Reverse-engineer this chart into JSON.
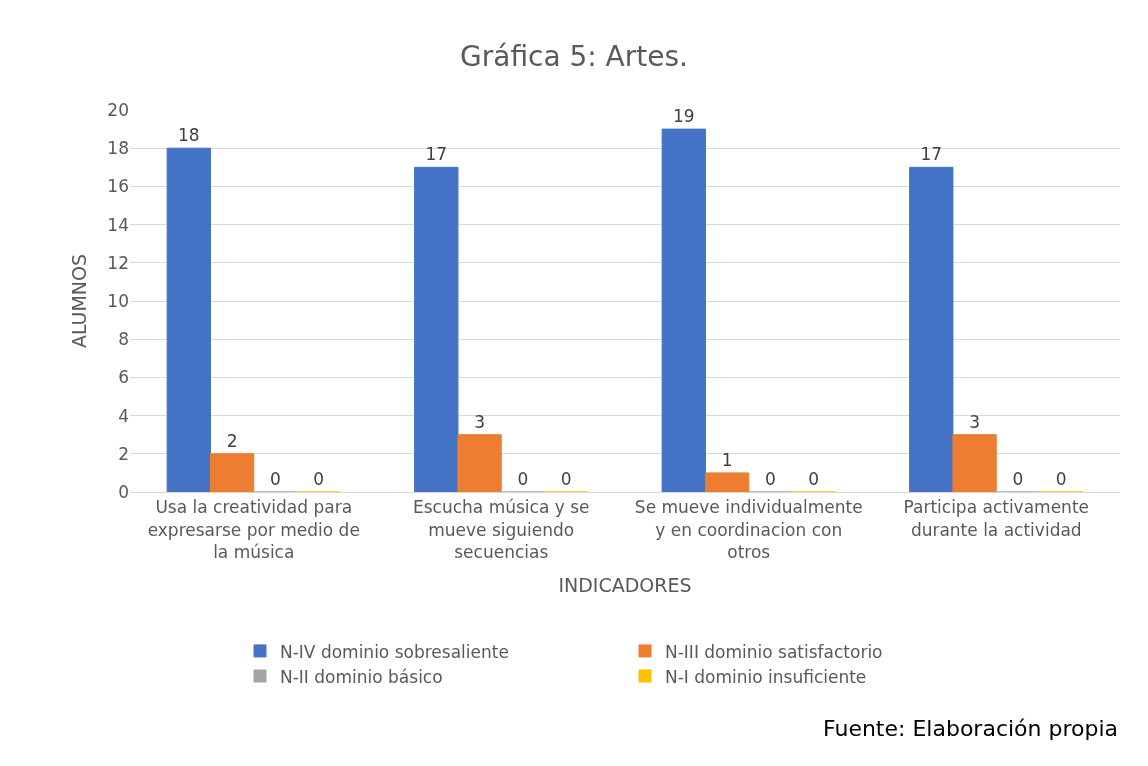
{
  "chart_data": {
    "type": "bar",
    "title": "Gráfica 5: Artes.",
    "xlabel": "INDICADORES",
    "ylabel": "ALUMNOS",
    "categories": [
      "Usa la creatividad para expresarse por medio de la música",
      "Escucha música y se mueve siguiendo secuencias",
      "Se mueve individualmente y en coordinacion con otros",
      "Participa activamente durante la actividad"
    ],
    "series": [
      {
        "name": "N-IV dominio sobresaliente",
        "color": "#4472c4",
        "values": [
          18,
          17,
          19,
          17
        ]
      },
      {
        "name": "N-III dominio satisfactorio",
        "color": "#ed7d31",
        "values": [
          2,
          3,
          1,
          3
        ]
      },
      {
        "name": "N-II dominio básico",
        "color": "#a5a5a5",
        "values": [
          0,
          0,
          0,
          0
        ]
      },
      {
        "name": "N-I dominio insuficiente",
        "color": "#ffc000",
        "values": [
          0,
          0,
          0,
          0
        ]
      }
    ],
    "ylim": [
      0,
      20
    ],
    "yticks": [
      0,
      2,
      4,
      6,
      8,
      10,
      12,
      14,
      16,
      18,
      20
    ],
    "grid": "y",
    "legend": "bottom",
    "data_labels": true,
    "annotations": [
      "Fuente: Elaboración propia"
    ]
  }
}
